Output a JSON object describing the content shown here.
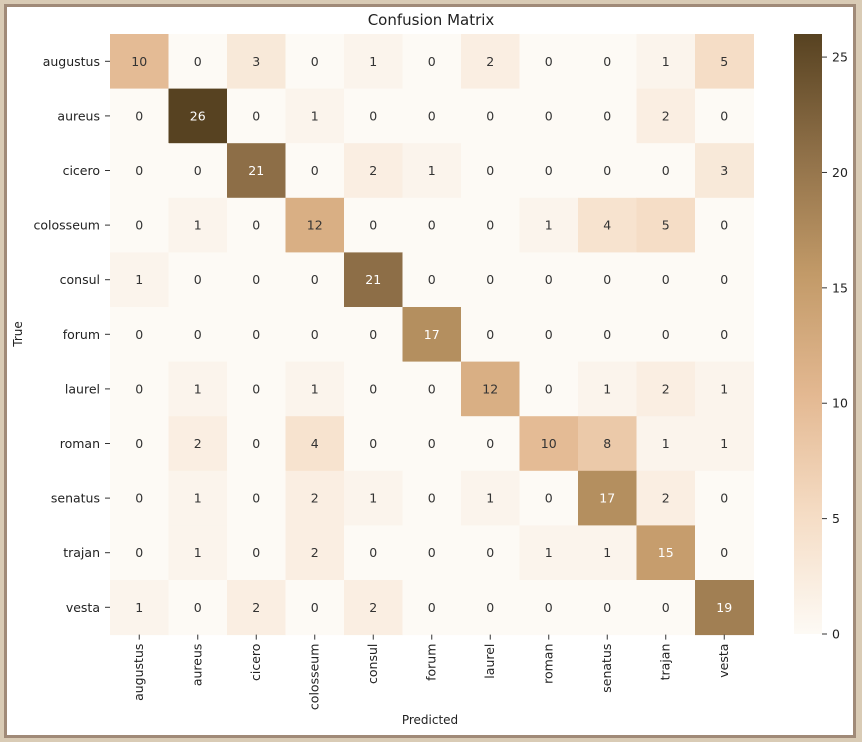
{
  "chart_data": {
    "type": "heatmap",
    "title": "Confusion Matrix",
    "xlabel": "Predicted",
    "ylabel": "True",
    "row_labels": [
      "augustus",
      "aureus",
      "cicero",
      "colosseum",
      "consul",
      "forum",
      "laurel",
      "roman",
      "senatus",
      "trajan",
      "vesta"
    ],
    "col_labels": [
      "augustus",
      "aureus",
      "cicero",
      "colosseum",
      "consul",
      "forum",
      "laurel",
      "roman",
      "senatus",
      "trajan",
      "vesta"
    ],
    "values": [
      [
        10,
        0,
        3,
        0,
        1,
        0,
        2,
        0,
        0,
        1,
        5
      ],
      [
        0,
        26,
        0,
        1,
        0,
        0,
        0,
        0,
        0,
        2,
        0
      ],
      [
        0,
        0,
        21,
        0,
        2,
        1,
        0,
        0,
        0,
        0,
        3
      ],
      [
        0,
        1,
        0,
        12,
        0,
        0,
        0,
        1,
        4,
        5,
        0
      ],
      [
        1,
        0,
        0,
        0,
        21,
        0,
        0,
        0,
        0,
        0,
        0
      ],
      [
        0,
        0,
        0,
        0,
        0,
        17,
        0,
        0,
        0,
        0,
        0
      ],
      [
        0,
        1,
        0,
        1,
        0,
        0,
        12,
        0,
        1,
        2,
        1
      ],
      [
        0,
        2,
        0,
        4,
        0,
        0,
        0,
        10,
        8,
        1,
        1
      ],
      [
        0,
        1,
        0,
        2,
        1,
        0,
        1,
        0,
        17,
        2,
        0
      ],
      [
        0,
        1,
        0,
        2,
        0,
        0,
        0,
        1,
        1,
        15,
        0
      ],
      [
        1,
        0,
        2,
        0,
        2,
        0,
        0,
        0,
        0,
        0,
        19
      ]
    ],
    "colorbar": {
      "min": 0,
      "max": 26,
      "ticks": [
        0,
        5,
        10,
        15,
        20,
        25
      ],
      "colors": [
        "#fdfaf5",
        "#f5dcc4",
        "#e3b891",
        "#c29a68",
        "#8f7048",
        "#574221"
      ]
    }
  }
}
